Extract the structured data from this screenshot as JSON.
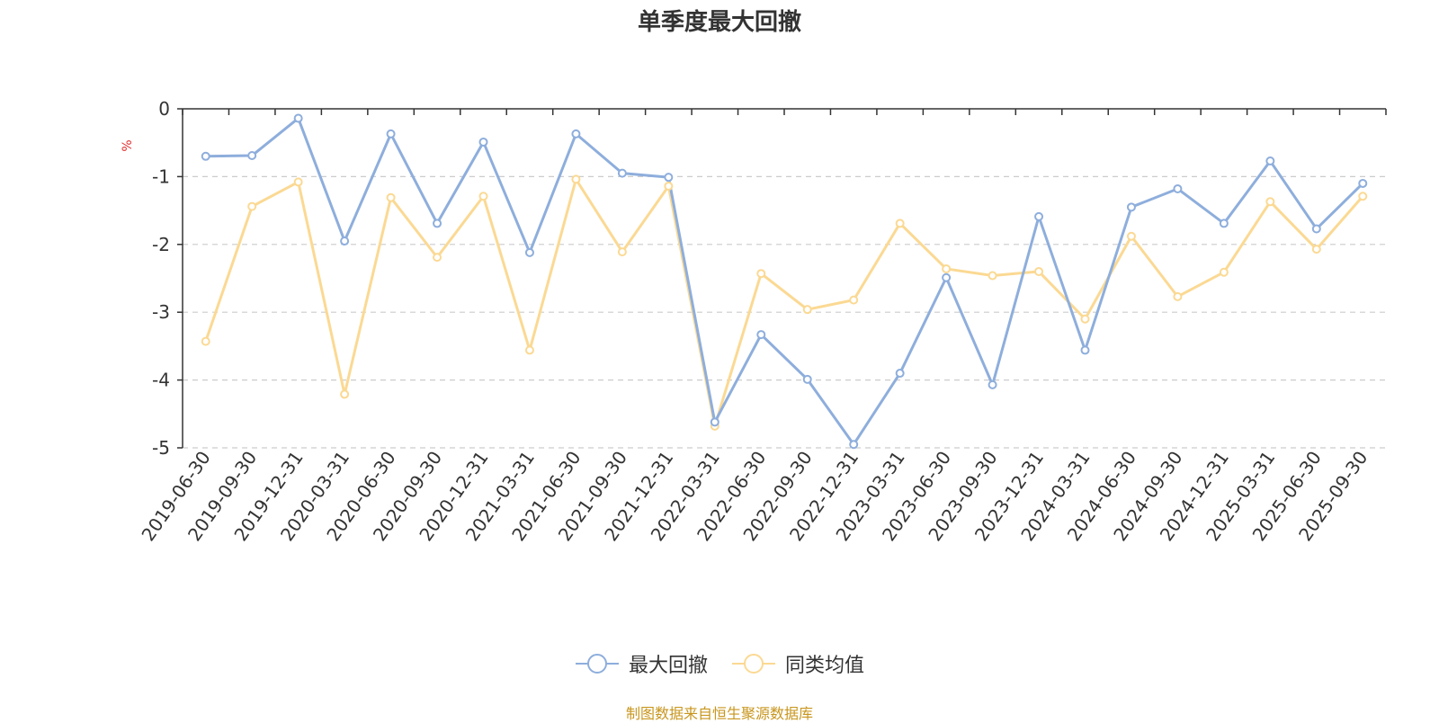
{
  "chart_data": {
    "type": "line",
    "title": "单季度最大回撤",
    "ylabel": "%",
    "ylim": [
      -5,
      0
    ],
    "yticks": [
      0,
      -1,
      -2,
      -3,
      -4,
      -5
    ],
    "grid": true,
    "legend_position": "bottom",
    "categories": [
      "2019-06-30",
      "2019-09-30",
      "2019-12-31",
      "2020-03-31",
      "2020-06-30",
      "2020-09-30",
      "2020-12-31",
      "2021-03-31",
      "2021-06-30",
      "2021-09-30",
      "2021-12-31",
      "2022-03-31",
      "2022-06-30",
      "2022-09-30",
      "2022-12-31",
      "2023-03-31",
      "2023-06-30",
      "2023-09-30",
      "2023-12-31",
      "2024-03-31",
      "2024-06-30",
      "2024-09-30",
      "2024-12-31",
      "2025-03-31",
      "2025-06-30",
      "2025-09-30"
    ],
    "series": [
      {
        "name": "最大回撤",
        "color": "#8eaedc",
        "values": [
          -0.7,
          -0.69,
          -0.14,
          -1.95,
          -0.37,
          -1.69,
          -0.49,
          -2.12,
          -0.37,
          -0.95,
          -1.01,
          -4.62,
          -3.33,
          -3.99,
          -4.95,
          -3.9,
          -2.49,
          -4.07,
          -1.59,
          -3.56,
          -1.45,
          -1.18,
          -1.69,
          -0.77,
          -1.77,
          -1.1
        ]
      },
      {
        "name": "同类均值",
        "color": "#fbd993",
        "values": [
          -3.43,
          -1.44,
          -1.08,
          -4.21,
          -1.31,
          -2.19,
          -1.29,
          -3.56,
          -1.04,
          -2.11,
          -1.14,
          -4.68,
          -2.43,
          -2.96,
          -2.82,
          -1.69,
          -2.36,
          -2.46,
          -2.4,
          -3.1,
          -1.88,
          -2.77,
          -2.41,
          -1.37,
          -2.07,
          -1.29
        ]
      }
    ]
  },
  "source": {
    "text": "制图数据来自恒生聚源数据库",
    "color": "#c8961e"
  },
  "colors": {
    "axis": "#333333",
    "grid": "#cccccc",
    "ylabel": "#e03030"
  }
}
